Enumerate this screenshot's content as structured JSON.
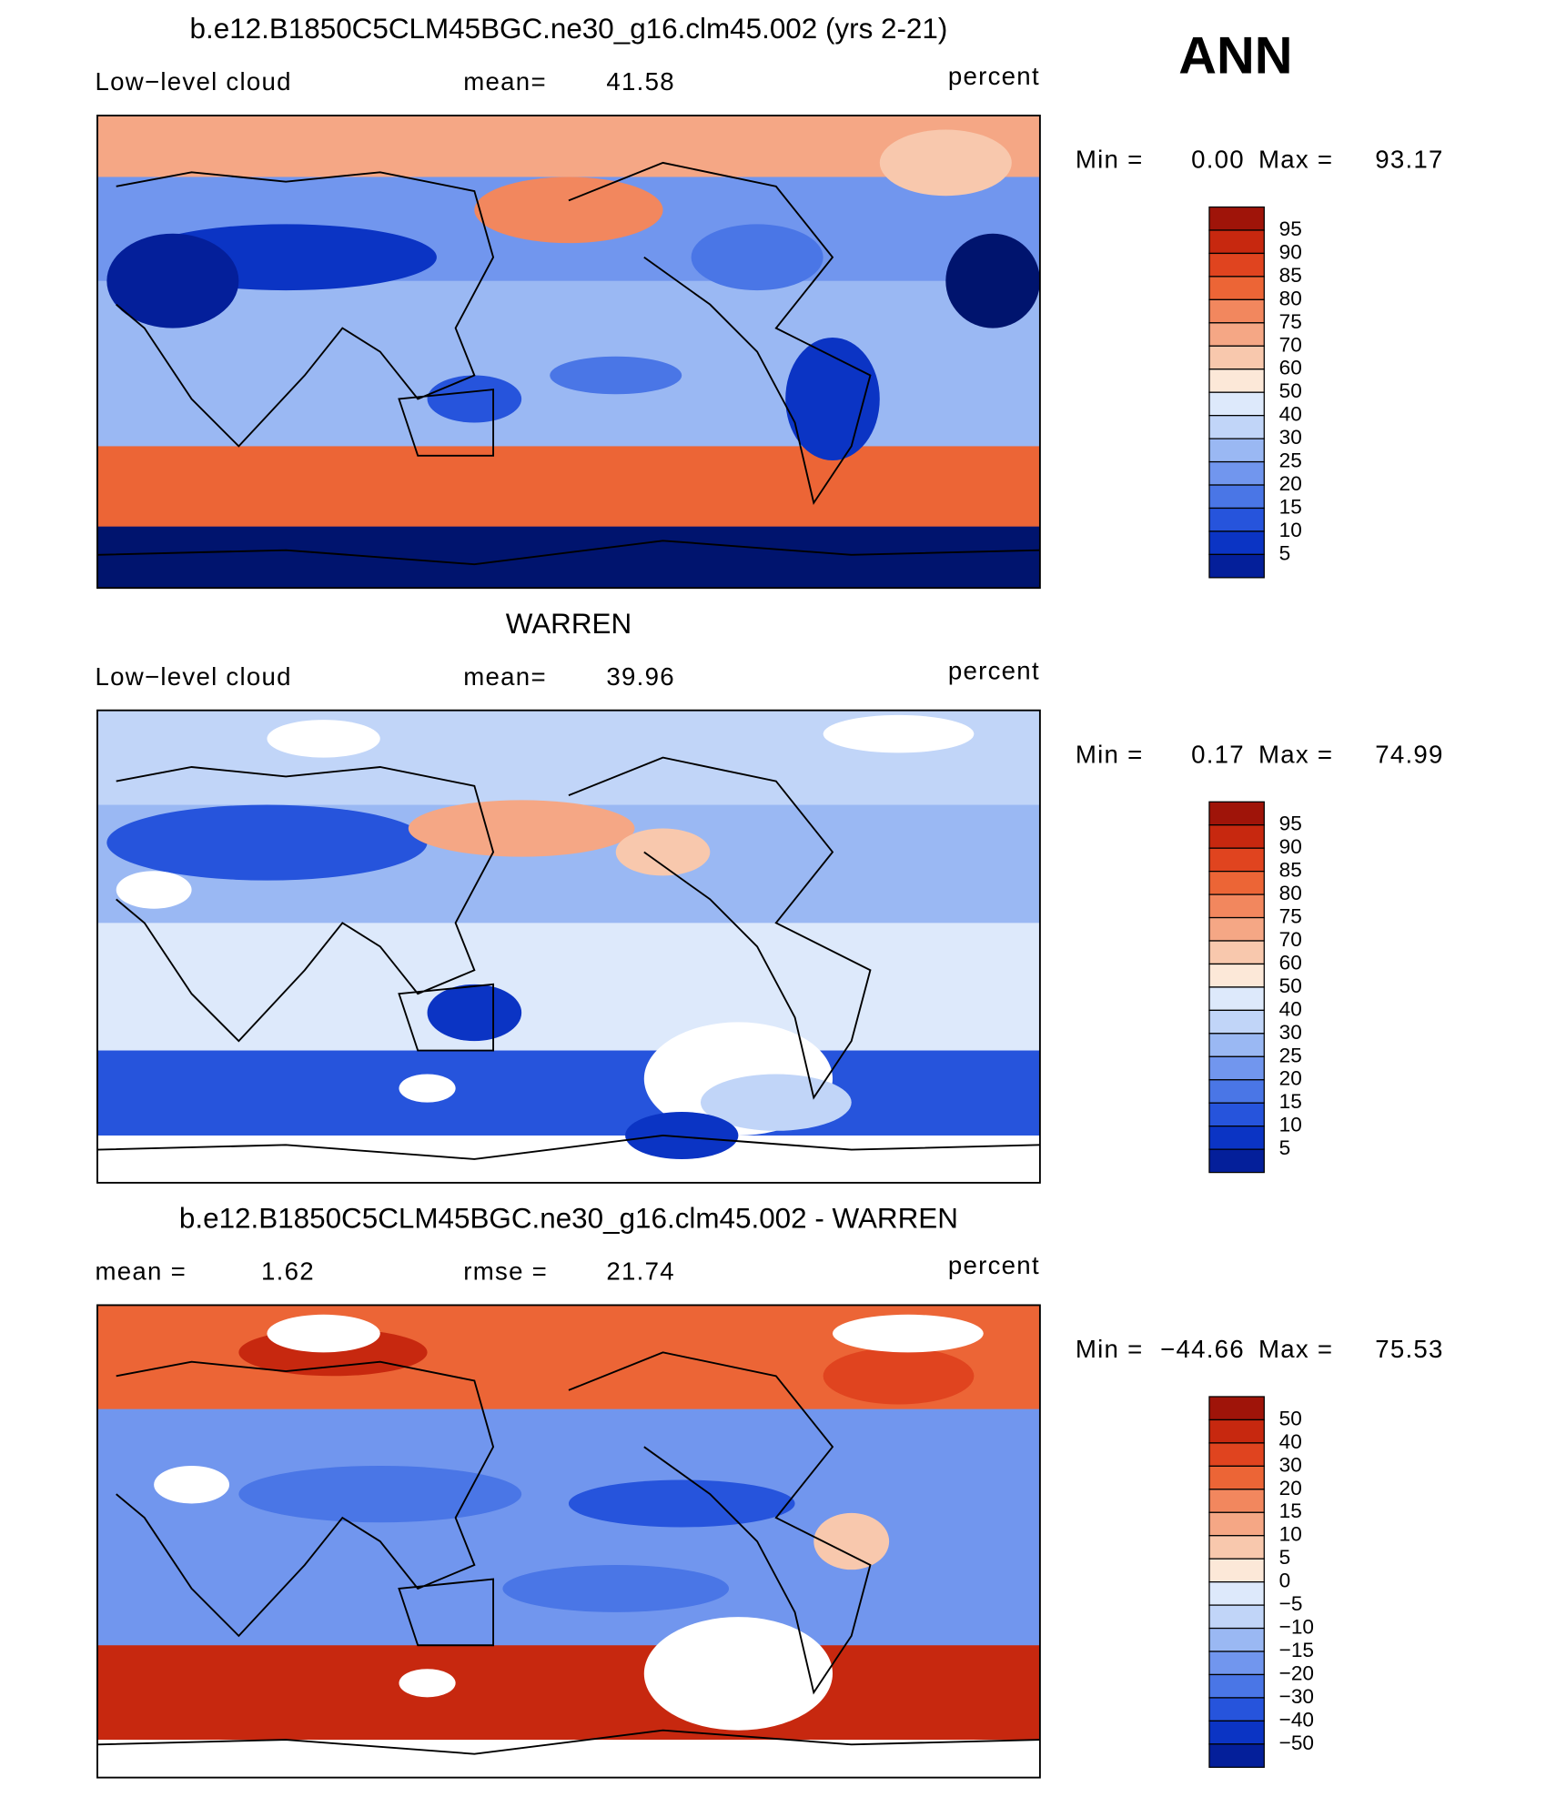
{
  "season": "ANN",
  "colorbar_colors": [
    "#9f1409",
    "#c7280f",
    "#e0441f",
    "#ec6536",
    "#f2875e",
    "#f5a785",
    "#f8c8ad",
    "#fce8d8",
    "#dde9fb",
    "#c1d5f8",
    "#9ab8f3",
    "#7196ee",
    "#4a76e6",
    "#2654dc",
    "#0b34c4",
    "#041f9a",
    "#00146e"
  ],
  "panels": [
    {
      "title": "b.e12.B1850C5CLM45BGC.ne30_g16.clm45.002 (yrs 2-21)",
      "left": {
        "label": "Low−level cloud"
      },
      "center": {
        "label": "mean=",
        "value": "41.58"
      },
      "units": "percent",
      "min_label": "Min =",
      "min": "0.00",
      "max_label": "Max =",
      "max": "93.17",
      "levels": [
        95,
        90,
        85,
        80,
        75,
        70,
        60,
        50,
        40,
        30,
        25,
        20,
        15,
        10,
        5
      ]
    },
    {
      "title": "WARREN",
      "left": {
        "label": "Low−level cloud"
      },
      "center": {
        "label": "mean=",
        "value": "39.96"
      },
      "units": "percent",
      "min_label": "Min =",
      "min": "0.17",
      "max_label": "Max =",
      "max": "74.99",
      "levels": [
        95,
        90,
        85,
        80,
        75,
        70,
        60,
        50,
        40,
        30,
        25,
        20,
        15,
        10,
        5
      ]
    },
    {
      "title": "b.e12.B1850C5CLM45BGC.ne30_g16.clm45.002 - WARREN",
      "left": {
        "label": "mean =",
        "value": "1.62"
      },
      "center": {
        "label": "rmse =",
        "value": "21.74"
      },
      "units": "percent",
      "min_label": "Min =",
      "min": "−44.66",
      "max_label": "Max =",
      "max": "75.53",
      "levels": [
        50,
        40,
        30,
        20,
        15,
        10,
        5,
        0,
        {
          "value": -5,
          "label": "−5"
        },
        {
          "value": -10,
          "label": "−10"
        },
        {
          "value": -15,
          "label": "−15"
        },
        {
          "value": -20,
          "label": "−20"
        },
        {
          "value": -30,
          "label": "−30"
        },
        {
          "value": -40,
          "label": "−40"
        },
        {
          "value": -50,
          "label": "−50"
        }
      ]
    }
  ]
}
